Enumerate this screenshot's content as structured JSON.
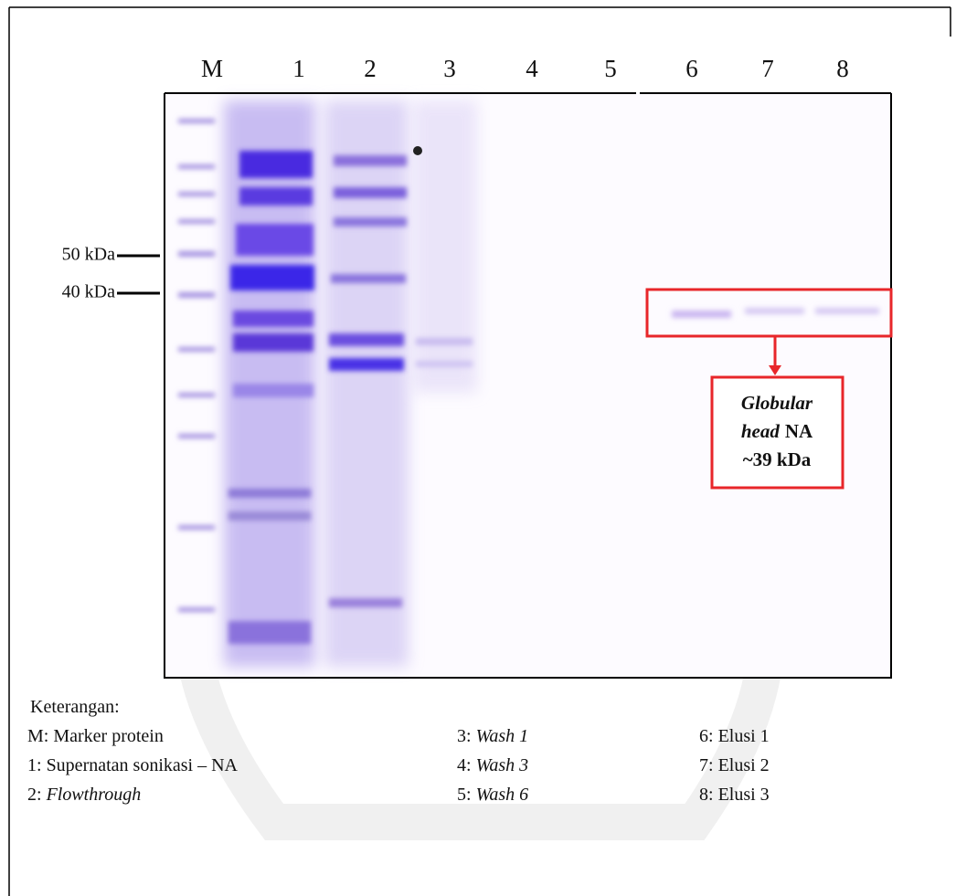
{
  "lanes": [
    "M",
    "1",
    "2",
    "3",
    "4",
    "5",
    "6",
    "7",
    "8"
  ],
  "markers": [
    "50 kDa",
    "40 kDa"
  ],
  "annotation": [
    "Globular",
    "head",
    "NA",
    "~39 kDa"
  ],
  "legend": {
    "title": "Keterangan:",
    "items": [
      {
        "key": "M:",
        "text": "Marker protein"
      },
      {
        "key": "1:",
        "text": "Supernatan sonikasi – NA"
      },
      {
        "key": "2:",
        "text": "Flowthrough"
      },
      {
        "key": "3:",
        "text": "Wash 1"
      },
      {
        "key": "4:",
        "text": "Wash 3"
      },
      {
        "key": "5:",
        "text": "Wash 6"
      },
      {
        "key": "6:",
        "text": "Elusi 1"
      },
      {
        "key": "7:",
        "text": "Elusi 2"
      },
      {
        "key": "8:",
        "text": "Elusi 3"
      }
    ]
  }
}
